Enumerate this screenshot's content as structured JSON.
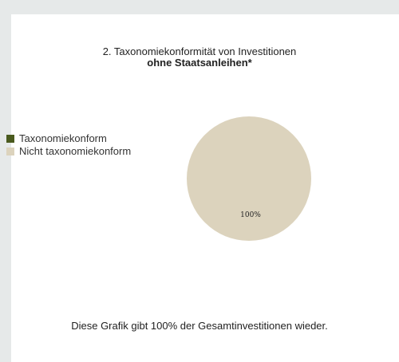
{
  "chart_data": {
    "type": "pie",
    "title": "2. Taxonomiekonformität von Investitionen",
    "subtitle": "ohne Staatsanleihen*",
    "legend_placement": "left",
    "series": [
      {
        "name": "Taxonomiekonform",
        "value": 0,
        "color": "#4a5a1e"
      },
      {
        "name": "Nicht taxonomiekonform",
        "value": 100,
        "color": "#dcd3bd"
      }
    ],
    "data_labels": [
      "",
      "100%"
    ]
  },
  "footer": {
    "note": "Diese Grafik gibt 100% der Gesamtinvestitionen wieder."
  }
}
